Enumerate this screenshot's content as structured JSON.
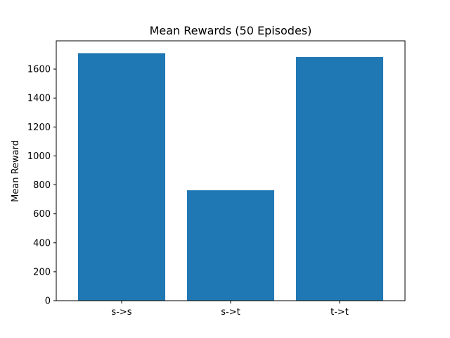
{
  "chart_data": {
    "type": "bar",
    "title": "Mean Rewards (50 Episodes)",
    "xlabel": "",
    "ylabel": "Mean Reward",
    "categories": [
      "s->s",
      "s->t",
      "t->t"
    ],
    "values": [
      1710,
      763,
      1683
    ],
    "ylim": [
      0,
      1795
    ],
    "yticks": [
      0,
      200,
      400,
      600,
      800,
      1000,
      1200,
      1400,
      1600
    ],
    "bar_color": "#1f77b4",
    "grid": false,
    "legend": "none"
  }
}
